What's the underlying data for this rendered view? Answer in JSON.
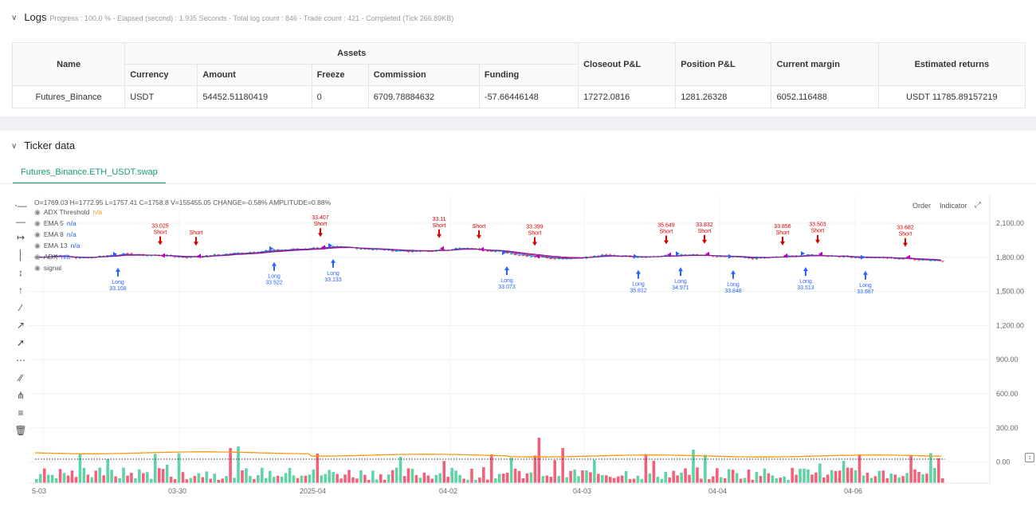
{
  "logs": {
    "title": "Logs",
    "summary": "Progress : 100.0 % - Elapsed (second) : 1.935  Seconds - Total log count : 846 - Trade count : 421 - Completed (Tick 266.89KB)",
    "table": {
      "header_name": "Name",
      "header_assets": "Assets",
      "headers_sub": [
        "Currency",
        "Amount",
        "Freeze",
        "Commission",
        "Funding"
      ],
      "headers_right": [
        "Closeout P&L",
        "Position P&L",
        "Current margin",
        "Estimated returns"
      ],
      "row": {
        "name": "Futures_Binance",
        "currency": "USDT",
        "amount": "54452.51180419",
        "freeze": "0",
        "commission": "6709.78884632",
        "funding": "-57.66446148",
        "closeout_pnl": "17272.0816",
        "position_pnl": "1281.26328",
        "current_margin": "6052.116488",
        "estimated_returns": "USDT 11785.89157219"
      }
    }
  },
  "ticker": {
    "title": "Ticker data",
    "tab": "Futures_Binance.ETH_USDT.swap",
    "ohlc": "O=1769.03 H=1772.95 L=1757.41 C=1758.8 V=155455.05 CHANGE=-0.58% AMPLITUDE=0.88%",
    "legend": [
      {
        "name": "ADX Threshold",
        "value": "n/a",
        "color": "#f39c12"
      },
      {
        "name": "EMA 5",
        "value": "n/a",
        "color": "#2962ff"
      },
      {
        "name": "EMA 8",
        "value": "n/a",
        "color": "#2962ff"
      },
      {
        "name": "EMA 13",
        "value": "n/a",
        "color": "#2962ff"
      },
      {
        "name": "ADX",
        "value": "n/a",
        "color": "#2962ff"
      },
      {
        "name": "signal",
        "value": "",
        "color": "#555555"
      }
    ],
    "buttons": {
      "order": "Order",
      "indicator": "Indicator"
    },
    "icons": [
      "crosshair-icon",
      "horizontal-line-icon",
      "horizontal-ray-icon",
      "vertical-line-icon",
      "vertical-segment-icon",
      "vertical-ray-icon",
      "trend-line-icon",
      "trend-segment-icon",
      "trend-ray-icon",
      "fib-icon",
      "parallel-channel-icon",
      "pitchfork-icon",
      "layers-icon",
      "trash-icon"
    ]
  },
  "chart_data": {
    "type": "candlestick",
    "y_ticks": [
      "2,100.00",
      "1,800.00",
      "1,500.00",
      "1,200.00",
      "900.00",
      "600.00",
      "300.00",
      "0.00"
    ],
    "x_ticks": [
      "5-03",
      "03-30",
      "2025-04",
      "04-02",
      "04-03",
      "04-04",
      "04-06"
    ],
    "colors": {
      "up": "#26a69a",
      "down": "#ef5350",
      "volume_up": "#5fd3a6",
      "volume_down": "#f4607a",
      "ema": "#2962ff",
      "ema2": "#c2185b",
      "adx_threshold": "#f39c12",
      "long": "#2962ff",
      "short": "#d50000",
      "exit": "#c000c0"
    },
    "price_path": [
      1800,
      1820,
      1790,
      1810,
      1830,
      1820,
      1815,
      1800,
      1810,
      1830,
      1845,
      1860,
      1870,
      1880,
      1890,
      1885,
      1870,
      1860,
      1850,
      1860,
      1880,
      1870,
      1850,
      1820,
      1800,
      1790,
      1800,
      1820,
      1810,
      1805,
      1815,
      1820,
      1810,
      1800,
      1790,
      1800,
      1815,
      1820,
      1810,
      1800,
      1795,
      1790,
      1780,
      1770
    ],
    "signals": [
      {
        "label": "Long",
        "value": "33.108",
        "dir": "long"
      },
      {
        "label": "Short",
        "value": "33.025",
        "dir": "short"
      },
      {
        "label": "Short",
        "value": "",
        "dir": "short"
      },
      {
        "label": "Long",
        "value": "33.522",
        "dir": "long"
      },
      {
        "label": "Short",
        "value": "33.407",
        "dir": "short"
      },
      {
        "label": "Long",
        "value": "33.133",
        "dir": "long"
      },
      {
        "label": "Short",
        "value": "33.11",
        "dir": "short"
      },
      {
        "label": "Short",
        "value": "",
        "dir": "short"
      },
      {
        "label": "Long",
        "value": "33.073",
        "dir": "long"
      },
      {
        "label": "Short",
        "value": "33.399",
        "dir": "short"
      },
      {
        "label": "Long",
        "value": "35.812",
        "dir": "long"
      },
      {
        "label": "Short",
        "value": "35.649",
        "dir": "short"
      },
      {
        "label": "Long",
        "value": "34.971",
        "dir": "long"
      },
      {
        "label": "Short",
        "value": "33.832",
        "dir": "short"
      },
      {
        "label": "Long",
        "value": "33.848",
        "dir": "long"
      },
      {
        "label": "Short",
        "value": "33.856",
        "dir": "short"
      },
      {
        "label": "Long",
        "value": "33.513",
        "dir": "long"
      },
      {
        "label": "Short",
        "value": "33.503",
        "dir": "short"
      },
      {
        "label": "Long",
        "value": "33.687",
        "dir": "long"
      },
      {
        "label": "Short",
        "value": "33.682",
        "dir": "short"
      }
    ]
  }
}
